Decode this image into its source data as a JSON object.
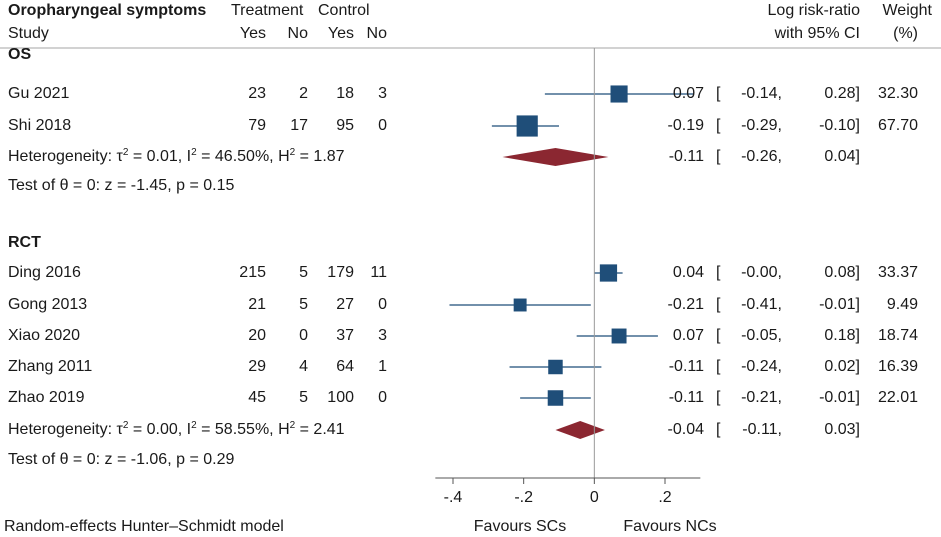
{
  "header": {
    "title": "Oropharyngeal symptoms",
    "study": "Study",
    "treatment": "Treatment",
    "control": "Control",
    "yes": "Yes",
    "no": "No",
    "effect_line1": "Log risk-ratio",
    "effect_line2": "with 95% CI",
    "weight_line1": "Weight",
    "weight_line2": "(%)"
  },
  "groups": [
    {
      "label": "OS",
      "studies": [
        {
          "name": "Gu 2021",
          "t_yes": "23",
          "t_no": "2",
          "c_yes": "18",
          "c_no": "3",
          "est": 0.07,
          "lo": -0.14,
          "hi": 0.28,
          "est_text": "0.07",
          "lo_text": "-0.14,",
          "hi_text": "0.28]",
          "weight": "32.30",
          "weight_value": 32.3
        },
        {
          "name": "Shi 2018",
          "t_yes": "79",
          "t_no": "17",
          "c_yes": "95",
          "c_no": "0",
          "est": -0.19,
          "lo": -0.29,
          "hi": -0.1,
          "est_text": "-0.19",
          "lo_text": "-0.29,",
          "hi_text": "-0.10]",
          "weight": "67.70",
          "weight_value": 67.7
        }
      ],
      "pooled": {
        "het_prefix": "Heterogeneity: τ",
        "tau2": " = 0.01, I",
        "i2": " = 46.50%, H",
        "h2": " = 1.87",
        "sq": "2",
        "est": -0.11,
        "lo": -0.26,
        "hi": 0.04,
        "est_text": "-0.11",
        "lo_text": "-0.26,",
        "hi_text": "0.04]"
      },
      "test": "Test of θ = 0: z = -1.45, p = 0.15"
    },
    {
      "label": "RCT",
      "studies": [
        {
          "name": "Ding 2016",
          "t_yes": "215",
          "t_no": "5",
          "c_yes": "179",
          "c_no": "11",
          "est": 0.04,
          "lo": -0.0,
          "hi": 0.08,
          "est_text": "0.04",
          "lo_text": "-0.00,",
          "hi_text": "0.08]",
          "weight": "33.37",
          "weight_value": 33.37
        },
        {
          "name": "Gong 2013",
          "t_yes": "21",
          "t_no": "5",
          "c_yes": "27",
          "c_no": "0",
          "est": -0.21,
          "lo": -0.41,
          "hi": -0.01,
          "est_text": "-0.21",
          "lo_text": "-0.41,",
          "hi_text": "-0.01]",
          "weight": "9.49",
          "weight_value": 9.49
        },
        {
          "name": "Xiao 2020",
          "t_yes": "20",
          "t_no": "0",
          "c_yes": "37",
          "c_no": "3",
          "est": 0.07,
          "lo": -0.05,
          "hi": 0.18,
          "est_text": "0.07",
          "lo_text": "-0.05,",
          "hi_text": "0.18]",
          "weight": "18.74",
          "weight_value": 18.74
        },
        {
          "name": "Zhang 2011",
          "t_yes": "29",
          "t_no": "4",
          "c_yes": "64",
          "c_no": "1",
          "est": -0.11,
          "lo": -0.24,
          "hi": 0.02,
          "est_text": "-0.11",
          "lo_text": "-0.24,",
          "hi_text": "0.02]",
          "weight": "16.39",
          "weight_value": 16.39
        },
        {
          "name": "Zhao 2019",
          "t_yes": "45",
          "t_no": "5",
          "c_yes": "100",
          "c_no": "0",
          "est": -0.11,
          "lo": -0.21,
          "hi": -0.01,
          "est_text": "-0.11",
          "lo_text": "-0.21,",
          "hi_text": "-0.01]",
          "weight": "22.01",
          "weight_value": 22.01
        }
      ],
      "pooled": {
        "het_prefix": "Heterogeneity: τ",
        "tau2": " = 0.00, I",
        "i2": " = 58.55%, H",
        "h2": " = 2.41",
        "sq": "2",
        "est": -0.04,
        "lo": -0.11,
        "hi": 0.03,
        "est_text": "-0.04",
        "lo_text": "-0.11,",
        "hi_text": "0.03]"
      },
      "test": "Test of θ = 0: z = -1.06, p = 0.29"
    }
  ],
  "axis": {
    "ticks": [
      -0.4,
      -0.2,
      0,
      0.2
    ],
    "tick_labels": [
      "-.4",
      "-.2",
      "0",
      ".2"
    ],
    "xlim": [
      -0.45,
      0.3
    ]
  },
  "favours_left": "Favours SCs",
  "favours_right": "Favours NCs",
  "footer": "Random-effects Hunter–Schmidt model",
  "colors": {
    "marker": "#1f4e79",
    "line": "#1f4e79",
    "diamond": "#8b2731",
    "axis": "#555555",
    "text": "#1a1a1a"
  },
  "chart_data": {
    "type": "forest",
    "title": "Oropharyngeal symptoms",
    "xlabel": "Log risk-ratio with 95% CI",
    "ticks": [
      -0.4,
      -0.2,
      0,
      0.2
    ],
    "series": [
      {
        "group": "OS",
        "names": [
          "Gu 2021",
          "Shi 2018"
        ],
        "estimates": [
          0.07,
          -0.19
        ],
        "ci_low": [
          -0.14,
          -0.29
        ],
        "ci_high": [
          0.28,
          -0.1
        ],
        "weights": [
          32.3,
          67.7
        ],
        "pooled": [
          -0.11,
          -0.26,
          0.04
        ]
      },
      {
        "group": "RCT",
        "names": [
          "Ding 2016",
          "Gong 2013",
          "Xiao 2020",
          "Zhang 2011",
          "Zhao 2019"
        ],
        "estimates": [
          0.04,
          -0.21,
          0.07,
          -0.11,
          -0.11
        ],
        "ci_low": [
          -0.0,
          -0.41,
          -0.05,
          -0.24,
          -0.21
        ],
        "ci_high": [
          0.08,
          -0.01,
          0.18,
          0.02,
          -0.01
        ],
        "weights": [
          33.37,
          9.49,
          18.74,
          16.39,
          22.01
        ],
        "pooled": [
          -0.04,
          -0.11,
          0.03
        ]
      }
    ]
  }
}
